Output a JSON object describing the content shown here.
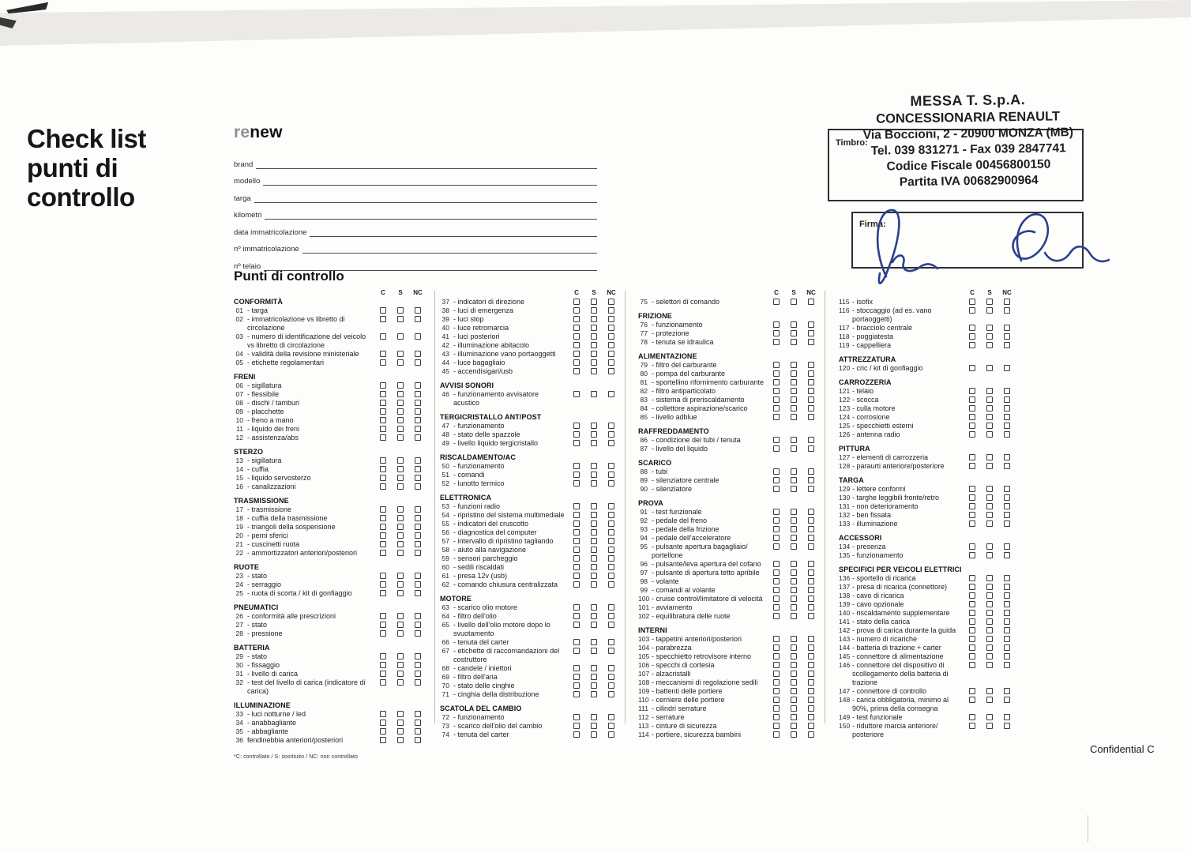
{
  "page": {
    "title": "Check list punti di controllo",
    "logo_re": "re",
    "logo_new": "new",
    "confidential": "Confidential C"
  },
  "form": {
    "fields": [
      "brand",
      "modello",
      "targa",
      "kilometri",
      "data immatricolazione",
      "nº immatricolazione",
      "nº telaio"
    ]
  },
  "stamp": {
    "timbro_label": "Timbro:",
    "firma_label": "Firma:",
    "lines": [
      "MESSA T. S.p.A.",
      "CONCESSIONARIA RENAULT",
      "Via Boccioni, 2 - 20900 MONZA (MB)",
      "Tel. 039 831271 - Fax 039 2847741",
      "Codice Fiscale 00456800150",
      "Partita IVA 00682900964"
    ],
    "signature_color": "#2b3f8c"
  },
  "checklist": {
    "heading": "Punti di controllo",
    "result_headers": [
      "C",
      "S",
      "NC"
    ],
    "footnote": "*C: controllato / S: sostituito / NC: non controllato",
    "columns": [
      {
        "sections": [
          {
            "title": "CONFORMITÀ",
            "items": [
              {
                "n": "01",
                "t": "- targa"
              },
              {
                "n": "02",
                "t": "- immatricolazione vs libretto di circolazione"
              },
              {
                "n": "03",
                "t": "- numero di identificazione del veicolo vs libretto di circolazione"
              },
              {
                "n": "04",
                "t": "- validità della revisione ministeriale"
              },
              {
                "n": "05",
                "t": "- etichette regolamentari"
              }
            ]
          },
          {
            "title": "FRENI",
            "items": [
              {
                "n": "06",
                "t": "- sigillatura"
              },
              {
                "n": "07",
                "t": "- flessibile"
              },
              {
                "n": "08",
                "t": "- dischi / tamburi"
              },
              {
                "n": "09",
                "t": "- placchette"
              },
              {
                "n": "10",
                "t": "- freno a mano"
              },
              {
                "n": "11",
                "t": "- liquido dei freni"
              },
              {
                "n": "12",
                "t": "- assistenza/abs"
              }
            ]
          },
          {
            "title": "STERZO",
            "items": [
              {
                "n": "13",
                "t": "- sigillatura"
              },
              {
                "n": "14",
                "t": "- cuffia"
              },
              {
                "n": "15",
                "t": "- liquido servosterzo"
              },
              {
                "n": "16",
                "t": "- canalizzazioni"
              }
            ]
          },
          {
            "title": "TRASMISSIONE",
            "items": [
              {
                "n": "17",
                "t": "- trasmissione"
              },
              {
                "n": "18",
                "t": "- cuffia della trasmissione"
              },
              {
                "n": "19",
                "t": "- triangoli della sospensione"
              },
              {
                "n": "20",
                "t": "- perni sferici"
              },
              {
                "n": "21",
                "t": "- cuscinetti ruota"
              },
              {
                "n": "22",
                "t": "- ammortizzatori anteriori/posteriori"
              }
            ]
          },
          {
            "title": "RUOTE",
            "items": [
              {
                "n": "23",
                "t": "- stato"
              },
              {
                "n": "24",
                "t": "- serraggio"
              },
              {
                "n": "25",
                "t": "- ruota di scorta / kit di gonfiaggio"
              }
            ]
          },
          {
            "title": "PNEUMATICI",
            "items": [
              {
                "n": "26",
                "t": "- conformità alle prescrizioni"
              },
              {
                "n": "27",
                "t": "- stato"
              },
              {
                "n": "28",
                "t": "- pressione"
              }
            ]
          },
          {
            "title": "BATTERIA",
            "items": [
              {
                "n": "29",
                "t": "- stato"
              },
              {
                "n": "30",
                "t": "- fissaggio"
              },
              {
                "n": "31",
                "t": "- livello di carica"
              },
              {
                "n": "32",
                "t": "- test del livello di carica (indicatore di carica)"
              }
            ]
          },
          {
            "title": "ILLUMINAZIONE",
            "items": [
              {
                "n": "33",
                "t": "- luci notturne / led"
              },
              {
                "n": "34",
                "t": "- anabbagliante"
              },
              {
                "n": "35",
                "t": "- abbagliante"
              },
              {
                "n": "36",
                "t": "fendinebbia anteriori/posteriori"
              }
            ]
          }
        ]
      },
      {
        "sections": [
          {
            "title": "",
            "items": [
              {
                "n": "37",
                "t": "- indicatori di direzione"
              },
              {
                "n": "38",
                "t": "- luci di emergenza"
              },
              {
                "n": "39",
                "t": "- luci stop"
              },
              {
                "n": "40",
                "t": "- luce retromarcia"
              },
              {
                "n": "41",
                "t": "- luci posteriori"
              },
              {
                "n": "42",
                "t": "- illuminazione abitacolo"
              },
              {
                "n": "43",
                "t": "- illuminazione vano portaoggetti"
              },
              {
                "n": "44",
                "t": "- luce bagagliaio"
              },
              {
                "n": "45",
                "t": "- accendisigari/usb"
              }
            ]
          },
          {
            "title": "AVVISI SONORI",
            "items": [
              {
                "n": "46",
                "t": "- funzionamento avvisatore acustico"
              }
            ]
          },
          {
            "title": "TERGICRISTALLO ANT/POST",
            "items": [
              {
                "n": "47",
                "t": "- funzionamento"
              },
              {
                "n": "48",
                "t": "- stato delle spazzole"
              },
              {
                "n": "49",
                "t": "- livello liquido tergicristallo"
              }
            ]
          },
          {
            "title": "RISCALDAMENTO/AC",
            "items": [
              {
                "n": "50",
                "t": "- funzionamento"
              },
              {
                "n": "51",
                "t": "- comandi"
              },
              {
                "n": "52",
                "t": "- lunotto termico"
              }
            ]
          },
          {
            "title": "ELETTRONICA",
            "items": [
              {
                "n": "53",
                "t": "- funzioni radio"
              },
              {
                "n": "54",
                "t": "- ripristino del sistema multimediale"
              },
              {
                "n": "55",
                "t": "- indicatori del cruscotto"
              },
              {
                "n": "56",
                "t": "- diagnostica del computer"
              },
              {
                "n": "57",
                "t": "- intervallo di ripristino tagliando"
              },
              {
                "n": "58",
                "t": "- aiuto alla navigazione"
              },
              {
                "n": "59",
                "t": "- sensori parcheggio"
              },
              {
                "n": "60",
                "t": "- sedili riscaldati"
              },
              {
                "n": "61",
                "t": "- presa 12v (usb)"
              },
              {
                "n": "62",
                "t": "- comando chiusura centralizzata"
              }
            ]
          },
          {
            "title": "MOTORE",
            "items": [
              {
                "n": "63",
                "t": "- scarico olio motore"
              },
              {
                "n": "64",
                "t": "- filtro dell'olio"
              },
              {
                "n": "65",
                "t": "- livello dell'olio motore dopo lo svuotamento"
              },
              {
                "n": "66",
                "t": "- tenuta del carter"
              },
              {
                "n": "67",
                "t": "- etichette di raccomandazioni del costruttore"
              },
              {
                "n": "68",
                "t": "- candele / iniettori"
              },
              {
                "n": "69",
                "t": "- filtro dell'aria"
              },
              {
                "n": "70",
                "t": "- stato delle cinghie"
              },
              {
                "n": "71",
                "t": "- cinghia della distribuzione"
              }
            ]
          },
          {
            "title": "SCATOLA DEL CAMBIO",
            "items": [
              {
                "n": "72",
                "t": "- funzionamento"
              },
              {
                "n": "73",
                "t": "- scarico dell'olio del cambio"
              },
              {
                "n": "74",
                "t": "- tenuta del carter"
              }
            ]
          }
        ]
      },
      {
        "sections": [
          {
            "title": "",
            "items": [
              {
                "n": "75",
                "t": "- selettori di comando"
              }
            ]
          },
          {
            "title": "FRIZIONE",
            "items": [
              {
                "n": "76",
                "t": "- funzionamento"
              },
              {
                "n": "77",
                "t": "- protezione"
              },
              {
                "n": "78",
                "t": "- tenuta se idraulica"
              }
            ]
          },
          {
            "title": "ALIMENTAZIONE",
            "items": [
              {
                "n": "79",
                "t": "- filtro del carburante"
              },
              {
                "n": "80",
                "t": "- pompa del carburante"
              },
              {
                "n": "81",
                "t": "- sportellino rifornimento carburante"
              },
              {
                "n": "82",
                "t": "- filtro antiparticolato"
              },
              {
                "n": "83",
                "t": "- sistema di preriscaldamento"
              },
              {
                "n": "84",
                "t": "- collettore aspirazione/scarico"
              },
              {
                "n": "85",
                "t": "- livello adblue"
              }
            ]
          },
          {
            "title": "RAFFREDDAMENTO",
            "items": [
              {
                "n": "86",
                "t": "- condizione dei tubi / tenuta"
              },
              {
                "n": "87",
                "t": "- livello del liquido"
              }
            ]
          },
          {
            "title": "SCARICO",
            "items": [
              {
                "n": "88",
                "t": "- tubi"
              },
              {
                "n": "89",
                "t": "- silenziatore centrale"
              },
              {
                "n": "90",
                "t": "- silenziatore"
              }
            ]
          },
          {
            "title": "PROVA",
            "items": [
              {
                "n": "91",
                "t": "- test funzionale"
              },
              {
                "n": "92",
                "t": "- pedale del freno"
              },
              {
                "n": "93",
                "t": "- pedale della frizione"
              },
              {
                "n": "94",
                "t": "- pedale dell'acceleratore"
              },
              {
                "n": "95",
                "t": "- pulsante apertura bagagliaio/ portellone"
              },
              {
                "n": "96",
                "t": "- pulsante/leva apertura del cofano"
              },
              {
                "n": "97",
                "t": "- pulsante di apertura tetto apribile"
              },
              {
                "n": "98",
                "t": "- volante"
              },
              {
                "n": "99",
                "t": "- comandi al volante"
              },
              {
                "n": "100",
                "t": "- cruise control/limitatore di velocità"
              },
              {
                "n": "101",
                "t": "- avviamento"
              },
              {
                "n": "102",
                "t": "- equilibratura delle ruote"
              }
            ]
          },
          {
            "title": "INTERNI",
            "items": [
              {
                "n": "103",
                "t": "- tappetini anteriori/posteriori"
              },
              {
                "n": "104",
                "t": "- parabrezza"
              },
              {
                "n": "105",
                "t": "- specchietto retrovisore interno"
              },
              {
                "n": "106",
                "t": "- specchi di cortesia"
              },
              {
                "n": "107",
                "t": "- alzacristalli"
              },
              {
                "n": "108",
                "t": "- meccanismi di regolazione sedili"
              },
              {
                "n": "109",
                "t": "- battenti delle portiere"
              },
              {
                "n": "110",
                "t": "- cerniere delle portiere"
              },
              {
                "n": "111",
                "t": "- cilindri serrature"
              },
              {
                "n": "112",
                "t": "- serrature"
              },
              {
                "n": "113",
                "t": "- cinture di sicurezza"
              },
              {
                "n": "114",
                "t": "- portiere, sicurezza bambini"
              }
            ]
          }
        ]
      },
      {
        "sections": [
          {
            "title": "",
            "items": [
              {
                "n": "115",
                "t": "- isofix"
              },
              {
                "n": "116",
                "t": "- stoccaggio (ad es. vano portaoggetti)"
              },
              {
                "n": "117",
                "t": "- bracciolo centrale"
              },
              {
                "n": "118",
                "t": "- poggiatesta"
              },
              {
                "n": "119",
                "t": "- cappelliera"
              }
            ]
          },
          {
            "title": "ATTREZZATURA",
            "items": [
              {
                "n": "120",
                "t": "- cric / kit di gonfiaggio"
              }
            ]
          },
          {
            "title": "CARROZZERIA",
            "items": [
              {
                "n": "121",
                "t": "- telaio"
              },
              {
                "n": "122",
                "t": "- scocca"
              },
              {
                "n": "123",
                "t": "- culla motore"
              },
              {
                "n": "124",
                "t": "- corrosione"
              },
              {
                "n": "125",
                "t": "- specchietti esterni"
              },
              {
                "n": "126",
                "t": "- antenna radio"
              }
            ]
          },
          {
            "title": "PITTURA",
            "items": [
              {
                "n": "127",
                "t": "- elementi di carrozzeria"
              },
              {
                "n": "128",
                "t": "- paraurti anteriore/posteriore"
              }
            ]
          },
          {
            "title": "TARGA",
            "items": [
              {
                "n": "129",
                "t": "- lettere conformi"
              },
              {
                "n": "130",
                "t": "- targhe leggibili fronte/retro"
              },
              {
                "n": "131",
                "t": "- non deterioramento"
              },
              {
                "n": "132",
                "t": "- ben fissata"
              },
              {
                "n": "133",
                "t": "- illuminazione"
              }
            ]
          },
          {
            "title": "ACCESSORI",
            "items": [
              {
                "n": "134",
                "t": "- presenza"
              },
              {
                "n": "135",
                "t": "- funzionamento"
              }
            ]
          },
          {
            "title": "SPECIFICI PER VEICOLI ELETTRICI",
            "items": [
              {
                "n": "136",
                "t": "- sportello di ricarica"
              },
              {
                "n": "137",
                "t": "- presa di ricarica (connettore)"
              },
              {
                "n": "138",
                "t": "- cavo di ricarica"
              },
              {
                "n": "139",
                "t": "- cavo opzionale"
              },
              {
                "n": "140",
                "t": "- riscaldamento supplementare"
              },
              {
                "n": "141",
                "t": "- stato della carica"
              },
              {
                "n": "142",
                "t": "- prova di carica durante la guida"
              },
              {
                "n": "143",
                "t": "- numero di ricariche"
              },
              {
                "n": "144",
                "t": "- batteria di trazione + carter"
              },
              {
                "n": "145",
                "t": "- connettore di alimentazione"
              },
              {
                "n": "146",
                "t": "- connettore del dispositivo di scollegamento della batteria di trazione"
              },
              {
                "n": "147",
                "t": "- connettore di controllo"
              },
              {
                "n": "148",
                "t": "- carica obbligatoria, minimo al 90%, prima della consegna"
              },
              {
                "n": "149",
                "t": "- test funzionale"
              },
              {
                "n": "150",
                "t": "- riduttore marcia anteriore/ posteriore"
              }
            ]
          }
        ]
      }
    ]
  }
}
